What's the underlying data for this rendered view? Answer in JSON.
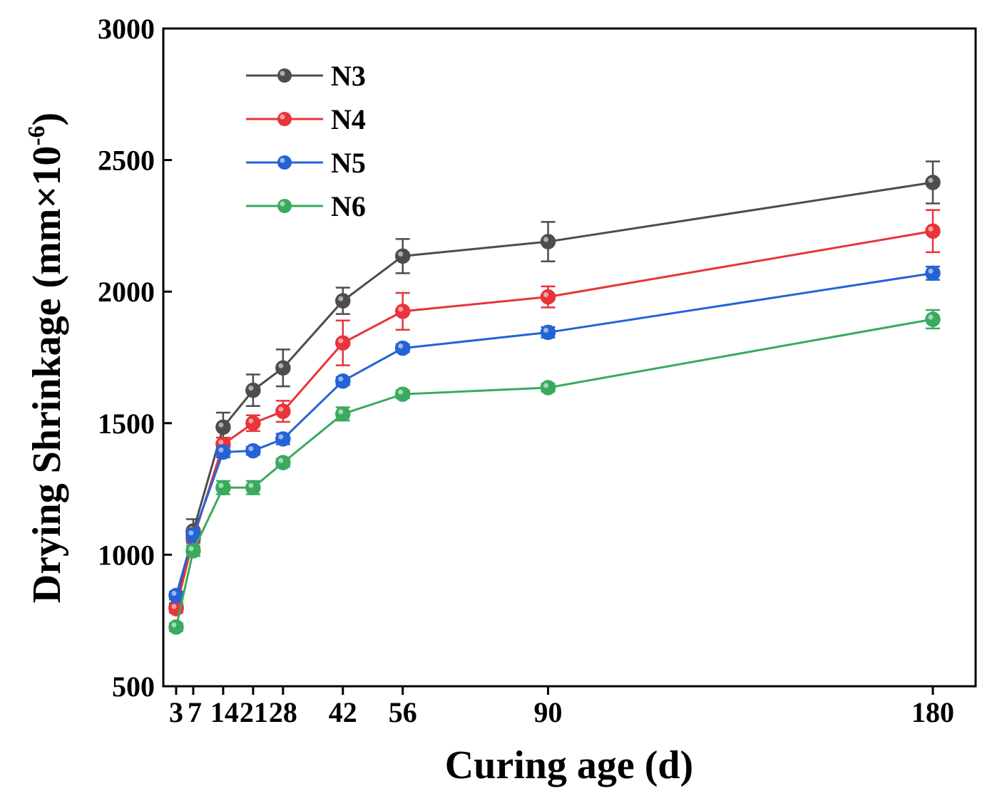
{
  "chart_data": {
    "type": "line",
    "xlabel": "Curing age (d)",
    "ylabel": "Drying Shrinkage (mm×10",
    "ylabel_sup": "-6",
    "ylabel_end": ")",
    "xlim": [
      0,
      190
    ],
    "ylim": [
      500,
      3000
    ],
    "yticks": [
      500,
      1000,
      1500,
      2000,
      2500,
      3000
    ],
    "xticks": [
      3,
      7,
      14,
      21,
      28,
      42,
      56,
      90,
      180
    ],
    "legend_position": "top-left",
    "x": [
      3,
      7,
      14,
      21,
      28,
      42,
      56,
      90,
      180
    ],
    "series": [
      {
        "name": "N3",
        "color": "#4d4d4d",
        "values": [
          800,
          1090,
          1485,
          1625,
          1710,
          1965,
          2135,
          2190,
          2415
        ],
        "errors": [
          15,
          45,
          55,
          60,
          70,
          50,
          65,
          75,
          80
        ]
      },
      {
        "name": "N4",
        "color": "#e8343a",
        "values": [
          795,
          1060,
          1420,
          1500,
          1545,
          1805,
          1925,
          1980,
          2230
        ],
        "errors": [
          15,
          35,
          25,
          30,
          40,
          85,
          70,
          40,
          80
        ]
      },
      {
        "name": "N5",
        "color": "#2463d6",
        "values": [
          845,
          1075,
          1390,
          1395,
          1440,
          1660,
          1785,
          1845,
          2070
        ],
        "errors": [
          15,
          25,
          20,
          15,
          20,
          15,
          15,
          20,
          25
        ]
      },
      {
        "name": "N6",
        "color": "#3aaa5e",
        "values": [
          725,
          1015,
          1255,
          1255,
          1350,
          1535,
          1610,
          1635,
          1895
        ],
        "errors": [
          15,
          20,
          25,
          25,
          15,
          25,
          15,
          15,
          35
        ]
      }
    ]
  }
}
